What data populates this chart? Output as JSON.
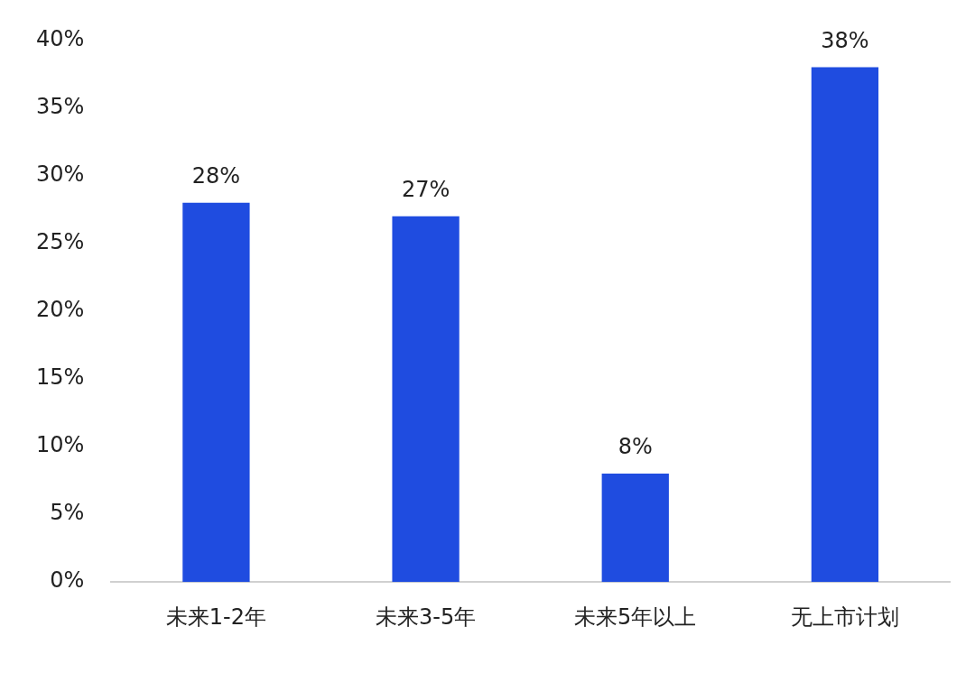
{
  "chart_data": {
    "type": "bar",
    "categories": [
      "未来1-2年",
      "未来3-5年",
      "未来5年以上",
      "无上市计划"
    ],
    "values": [
      28,
      27,
      8,
      38
    ],
    "color": "#1f4ce0",
    "value_labels": [
      "28%",
      "27%",
      "8%",
      "38%"
    ],
    "ylim": [
      0,
      40
    ],
    "yticks": [
      {
        "value": 0,
        "label": "0%"
      },
      {
        "value": 5,
        "label": "5%"
      },
      {
        "value": 10,
        "label": "10%"
      },
      {
        "value": 15,
        "label": "15%"
      },
      {
        "value": 20,
        "label": "20%"
      },
      {
        "value": 25,
        "label": "25%"
      },
      {
        "value": 30,
        "label": "30%"
      },
      {
        "value": 35,
        "label": "35%"
      },
      {
        "value": 40,
        "label": "40%"
      }
    ],
    "grid": false,
    "legend": false
  }
}
